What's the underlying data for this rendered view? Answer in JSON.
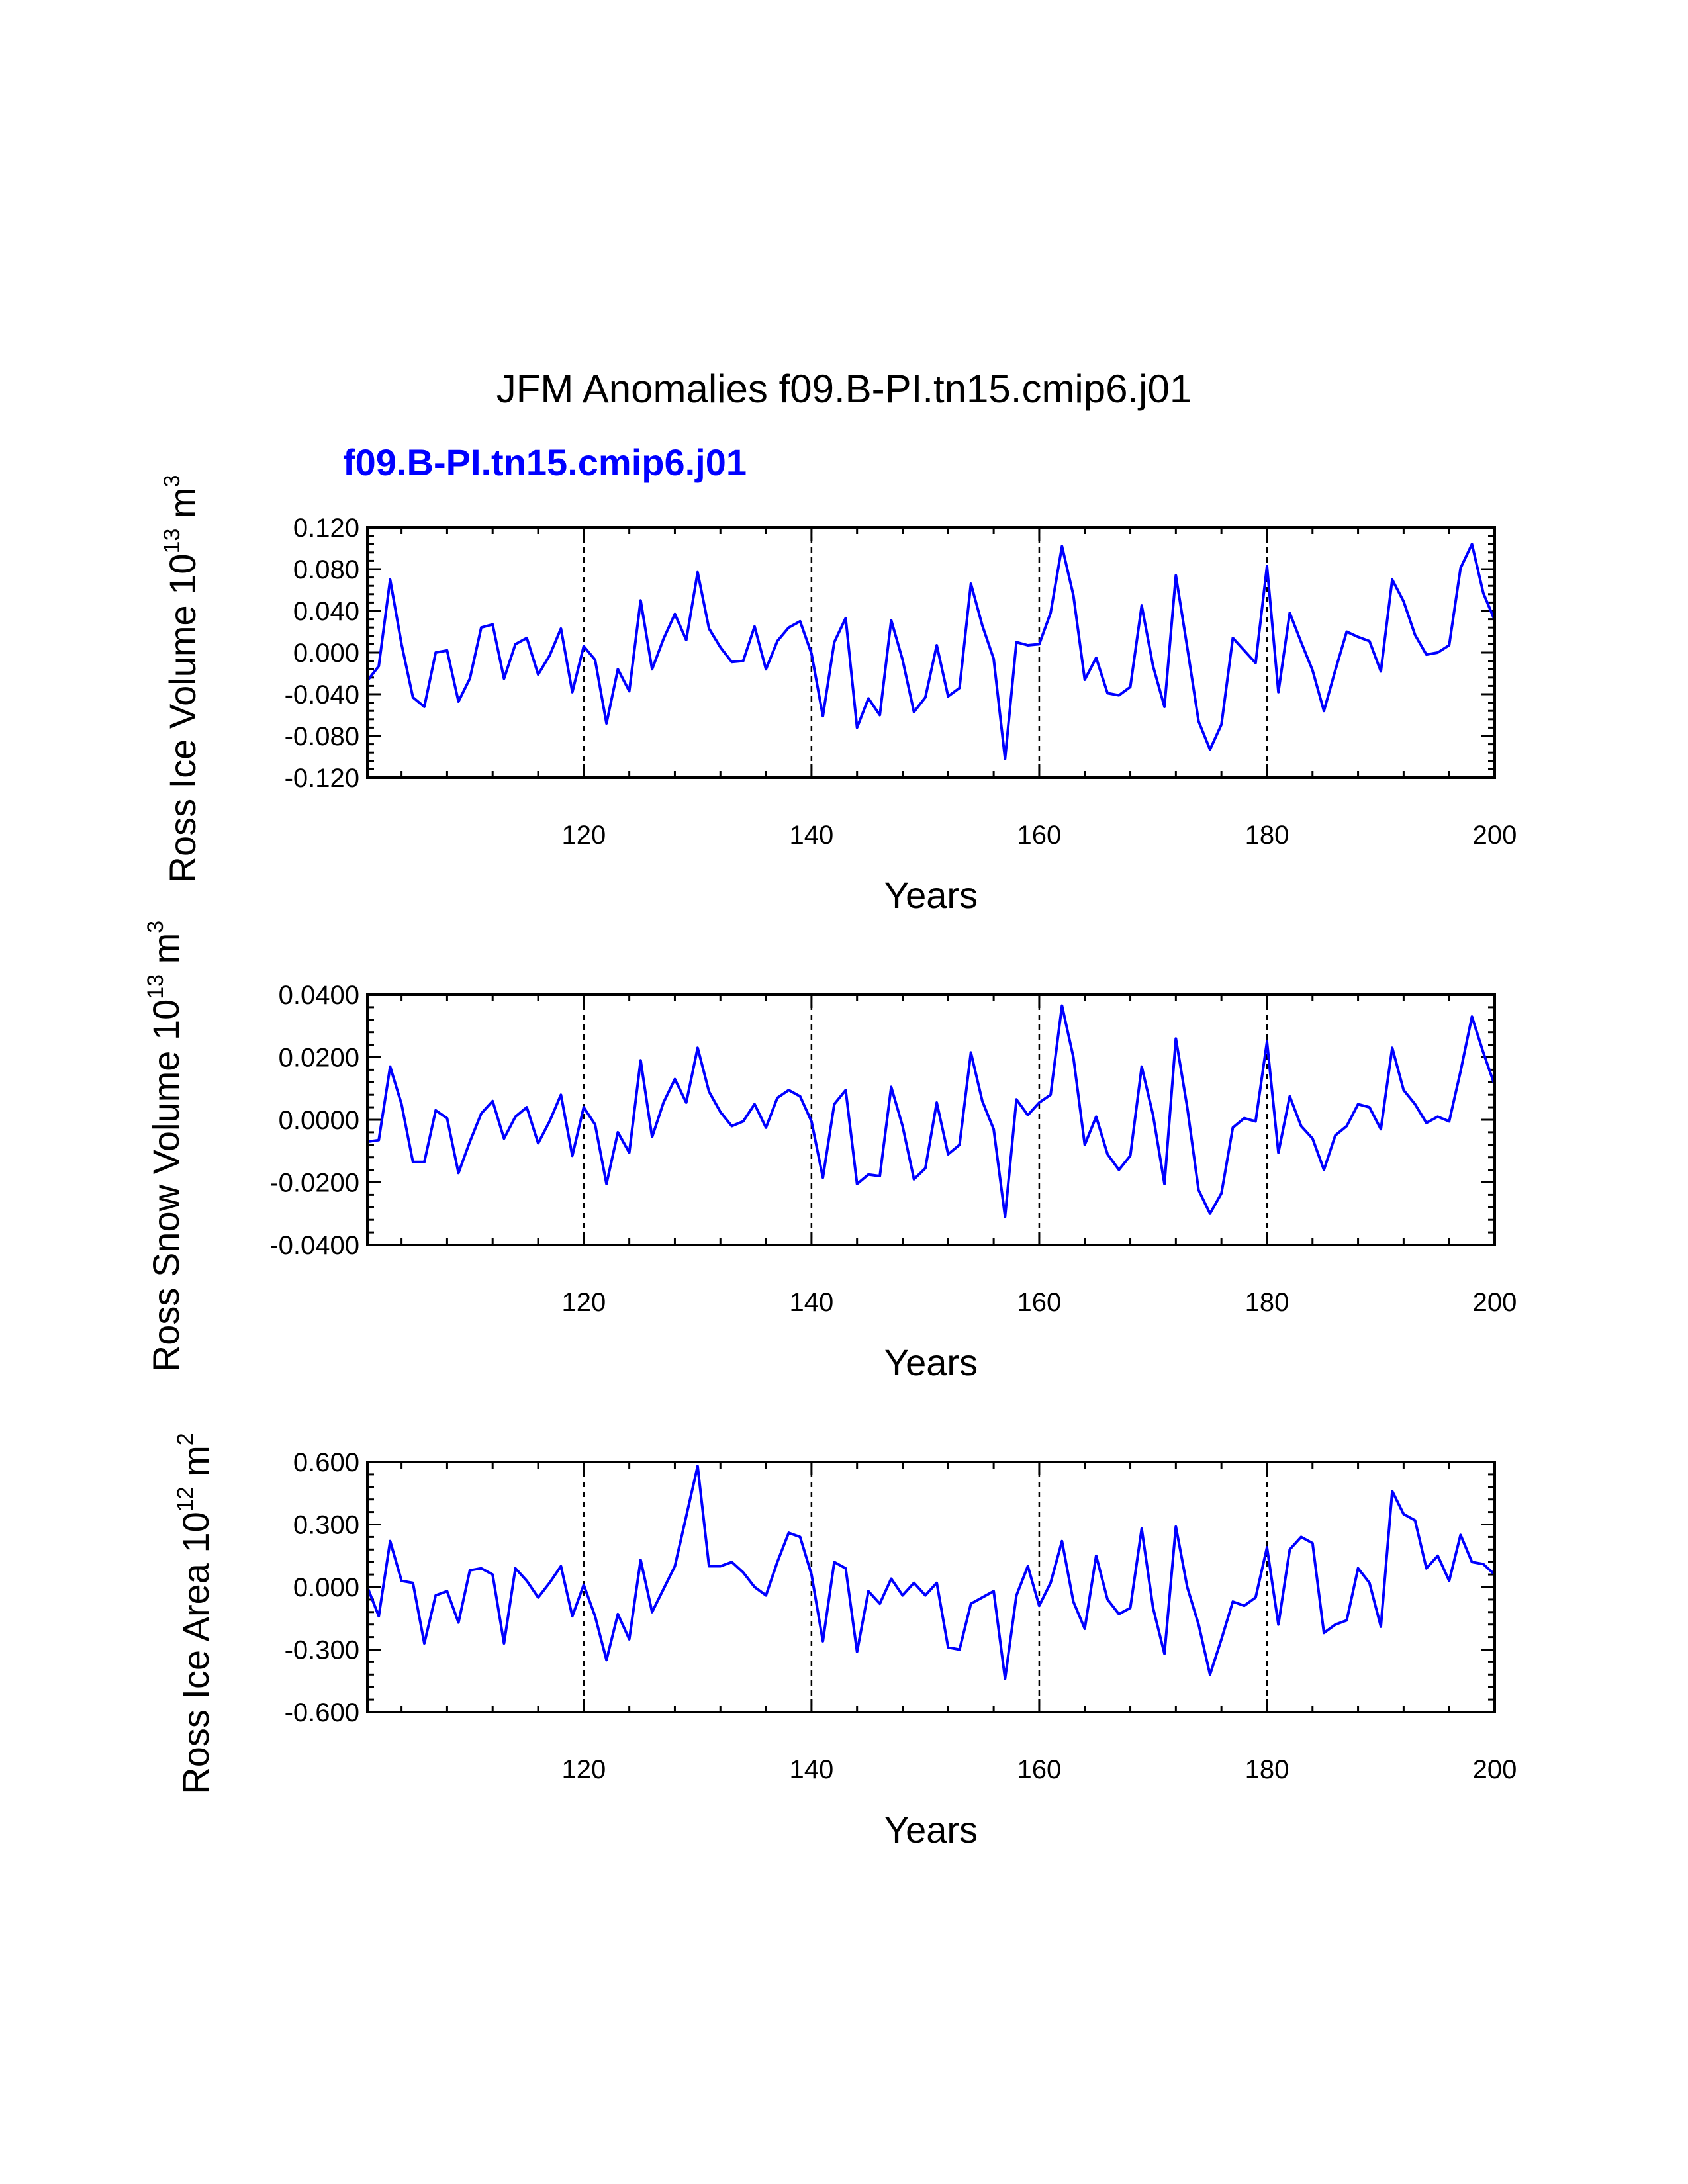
{
  "figure_title": "JFM Anomalies f09.B-PI.tn15.cmip6.j01",
  "case_label": "f09.B-PI.tn15.cmip6.j01",
  "colors": {
    "series": "#0000ff",
    "axes": "#000000"
  },
  "chart_data": [
    {
      "type": "line",
      "ylabel_text": "Ross Ice Volume 10",
      "ylabel_exp": "13",
      "ylabel_unit": " m",
      "ylabel_unit_exp": "3",
      "xlabel": "Years",
      "xlim": [
        101,
        200
      ],
      "ylim": [
        -0.12,
        0.12
      ],
      "xticks": [
        120,
        140,
        160,
        180,
        200
      ],
      "xtick_labels": [
        "120",
        "140",
        "160",
        "180",
        "200"
      ],
      "yticks": [
        -0.12,
        -0.08,
        -0.04,
        0,
        0.04,
        0.08,
        0.12
      ],
      "ytick_labels": [
        "-0.120",
        "-0.080",
        "-0.040",
        "0.000",
        "0.040",
        "0.080",
        "0.120"
      ],
      "ref_lines_x": [
        120,
        140,
        160,
        180
      ],
      "x_start": 101,
      "values": [
        -0.027,
        -0.013,
        0.07,
        0.008,
        -0.043,
        -0.052,
        0.0,
        0.002,
        -0.047,
        -0.025,
        0.024,
        0.027,
        -0.025,
        0.008,
        0.014,
        -0.021,
        -0.003,
        0.023,
        -0.038,
        0.006,
        -0.007,
        -0.068,
        -0.016,
        -0.037,
        0.05,
        -0.016,
        0.013,
        0.037,
        0.012,
        0.077,
        0.023,
        0.005,
        -0.009,
        -0.008,
        0.025,
        -0.016,
        0.011,
        0.024,
        0.03,
        -0.001,
        -0.061,
        0.01,
        0.033,
        -0.072,
        -0.044,
        -0.06,
        0.031,
        -0.007,
        -0.057,
        -0.043,
        0.007,
        -0.042,
        -0.034,
        0.066,
        0.026,
        -0.006,
        -0.102,
        0.01,
        0.007,
        0.008,
        0.038,
        0.102,
        0.055,
        -0.026,
        -0.005,
        -0.039,
        -0.041,
        -0.033,
        0.045,
        -0.013,
        -0.052,
        0.074,
        0.005,
        -0.066,
        -0.093,
        -0.069,
        0.014,
        0.002,
        -0.01,
        0.083,
        -0.038,
        0.038,
        0.01,
        -0.017,
        -0.056,
        -0.017,
        0.02,
        0.015,
        0.011,
        -0.018,
        0.07,
        0.049,
        0.017,
        -0.002,
        0.0,
        0.007,
        0.081,
        0.104,
        0.057,
        0.031
      ]
    },
    {
      "type": "line",
      "ylabel_text": "Ross Snow Volume 10",
      "ylabel_exp": "13",
      "ylabel_unit": " m",
      "ylabel_unit_exp": "3",
      "xlabel": "Years",
      "xlim": [
        101,
        200
      ],
      "ylim": [
        -0.04,
        0.04
      ],
      "xticks": [
        120,
        140,
        160,
        180,
        200
      ],
      "xtick_labels": [
        "120",
        "140",
        "160",
        "180",
        "200"
      ],
      "yticks": [
        -0.04,
        -0.02,
        0,
        0.02,
        0.04
      ],
      "ytick_labels": [
        "-0.0400",
        "-0.0200",
        "0.0000",
        "0.0200",
        "0.0400"
      ],
      "ref_lines_x": [
        120,
        140,
        160,
        180
      ],
      "x_start": 101,
      "values": [
        -0.007,
        -0.0065,
        0.017,
        0.005,
        -0.0135,
        -0.0135,
        0.003,
        0.0005,
        -0.017,
        -0.007,
        0.002,
        0.006,
        -0.006,
        0.001,
        0.004,
        -0.0075,
        -0.0005,
        0.008,
        -0.0115,
        0.004,
        -0.0015,
        -0.0205,
        -0.004,
        -0.0105,
        0.019,
        -0.0055,
        0.0055,
        0.013,
        0.0055,
        0.023,
        0.009,
        0.0025,
        -0.002,
        -0.0005,
        0.005,
        -0.0025,
        0.007,
        0.0095,
        0.0075,
        -0.0005,
        -0.0185,
        0.005,
        0.0095,
        -0.0205,
        -0.0175,
        -0.018,
        0.0105,
        -0.002,
        -0.019,
        -0.0155,
        0.0055,
        -0.011,
        -0.008,
        0.0215,
        0.006,
        -0.003,
        -0.031,
        0.0065,
        0.0015,
        0.0055,
        0.008,
        0.0365,
        0.02,
        -0.008,
        0.001,
        -0.011,
        -0.016,
        -0.0115,
        0.017,
        0.0015,
        -0.0205,
        0.026,
        0.004,
        -0.0225,
        -0.03,
        -0.0235,
        -0.0025,
        0.0005,
        -0.0005,
        0.025,
        -0.0105,
        0.0075,
        -0.002,
        -0.006,
        -0.016,
        -0.005,
        -0.002,
        0.005,
        0.004,
        -0.003,
        0.023,
        0.0095,
        0.005,
        -0.001,
        0.001,
        -0.0005,
        0.0155,
        0.033,
        0.0215,
        0.011
      ]
    },
    {
      "type": "line",
      "ylabel_text": "Ross Ice Area 10",
      "ylabel_exp": "12",
      "ylabel_unit": " m",
      "ylabel_unit_exp": "2",
      "xlabel": "Years",
      "xlim": [
        101,
        200
      ],
      "ylim": [
        -0.6,
        0.6
      ],
      "xticks": [
        120,
        140,
        160,
        180,
        200
      ],
      "xtick_labels": [
        "120",
        "140",
        "160",
        "180",
        "200"
      ],
      "yticks": [
        -0.6,
        -0.3,
        0,
        0.3,
        0.6
      ],
      "ytick_labels": [
        "-0.600",
        "-0.300",
        "0.000",
        "0.300",
        "0.600"
      ],
      "ref_lines_x": [
        120,
        140,
        160,
        180
      ],
      "x_start": 101,
      "values": [
        0.0,
        -0.14,
        0.22,
        0.03,
        0.02,
        -0.27,
        -0.04,
        -0.02,
        -0.17,
        0.08,
        0.09,
        0.06,
        -0.27,
        0.09,
        0.03,
        -0.05,
        0.02,
        0.1,
        -0.14,
        0.01,
        -0.14,
        -0.35,
        -0.13,
        -0.25,
        0.13,
        -0.12,
        -0.01,
        0.1,
        0.34,
        0.58,
        0.1,
        0.1,
        0.12,
        0.07,
        0.0,
        -0.04,
        0.12,
        0.26,
        0.24,
        0.06,
        -0.26,
        0.12,
        0.09,
        -0.31,
        -0.02,
        -0.08,
        0.04,
        -0.04,
        0.02,
        -0.04,
        0.02,
        -0.29,
        -0.3,
        -0.08,
        -0.05,
        -0.02,
        -0.44,
        -0.04,
        0.1,
        -0.09,
        0.02,
        0.22,
        -0.07,
        -0.2,
        0.15,
        -0.06,
        -0.13,
        -0.1,
        0.28,
        -0.1,
        -0.32,
        0.29,
        0.0,
        -0.18,
        -0.42,
        -0.25,
        -0.07,
        -0.09,
        -0.05,
        0.19,
        -0.18,
        0.18,
        0.24,
        0.21,
        -0.22,
        -0.18,
        -0.16,
        0.09,
        0.02,
        -0.19,
        0.46,
        0.35,
        0.32,
        0.09,
        0.15,
        0.03,
        0.25,
        0.12,
        0.11,
        0.06
      ]
    }
  ]
}
